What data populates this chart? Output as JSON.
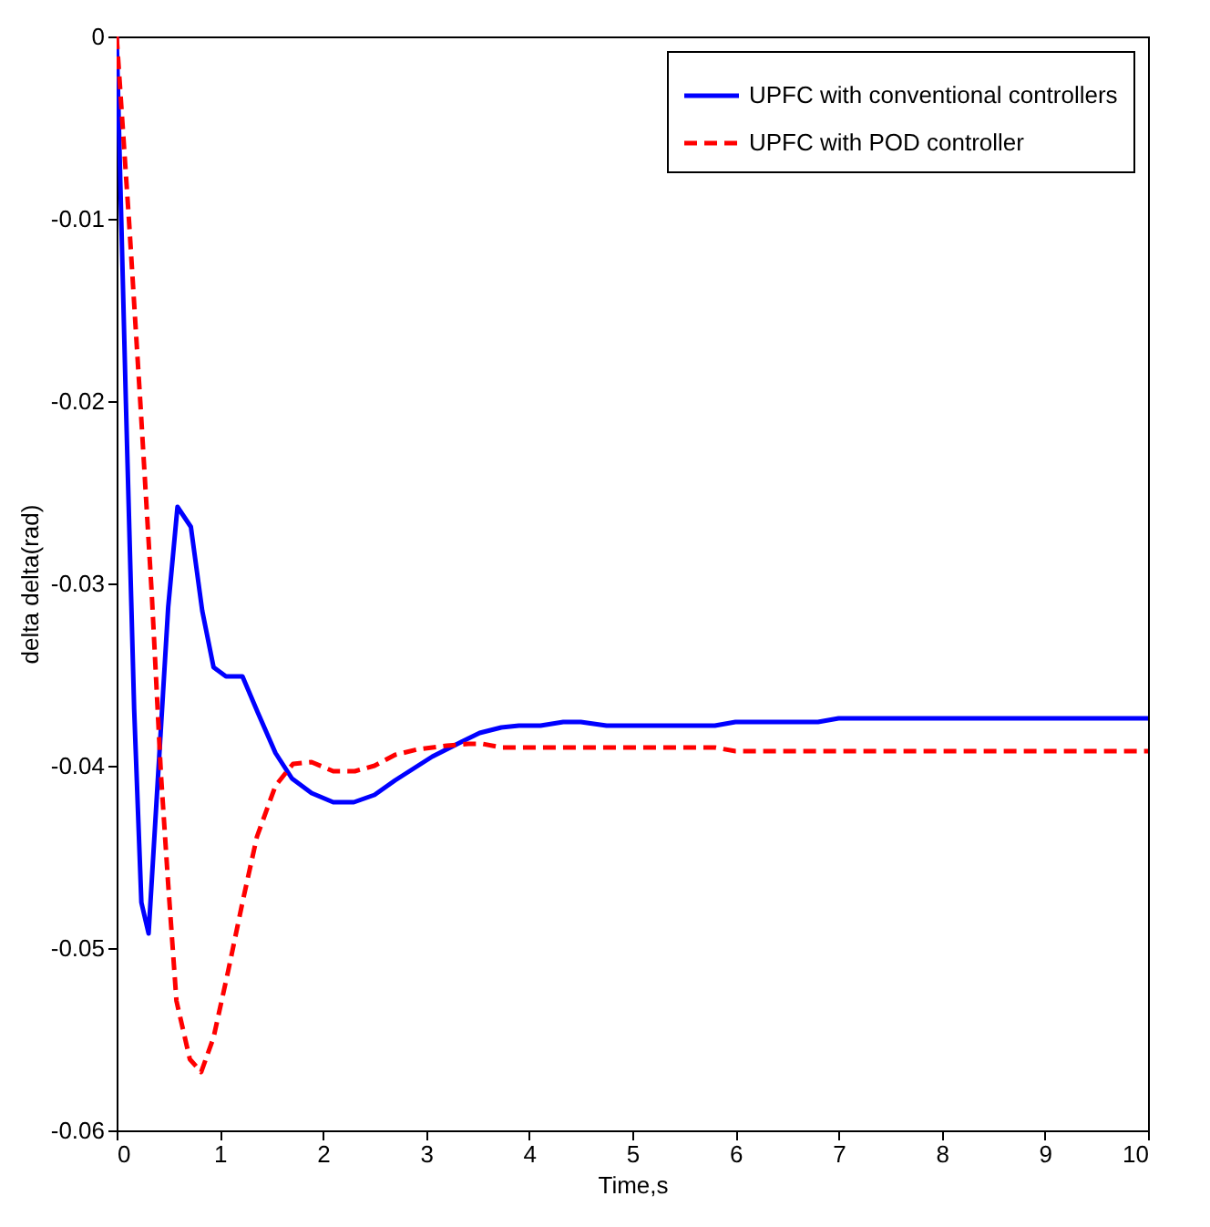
{
  "chart_data": {
    "type": "line",
    "xlabel": "Time,s",
    "ylabel": "delta delta(rad)",
    "xlim": [
      0,
      10
    ],
    "ylim": [
      -0.06,
      0
    ],
    "xticks": [
      0,
      1,
      2,
      3,
      4,
      5,
      6,
      7,
      8,
      9,
      10
    ],
    "yticks": [
      -0.06,
      -0.05,
      -0.04,
      -0.03,
      -0.02,
      -0.01,
      0
    ],
    "grid": false,
    "legend": "top right",
    "marker": "none",
    "series": [
      {
        "name": "UPFC with conventional controllers",
        "color": "#0000ff",
        "line_style": "solid",
        "x": [
          0,
          0.09,
          0.17,
          0.24,
          0.31,
          0.5,
          0.59,
          0.72,
          0.83,
          0.94,
          1.06,
          1.22,
          1.37,
          1.54,
          1.7,
          1.89,
          2.1,
          2.3,
          2.5,
          2.7,
          3.06,
          3.34,
          3.52,
          3.73,
          3.9,
          4.11,
          4.33,
          4.5,
          4.75,
          5.8,
          6.0,
          6.8,
          7.0,
          10
        ],
        "values": [
          0,
          -0.0201,
          -0.0369,
          -0.0475,
          -0.0492,
          -0.0313,
          -0.0258,
          -0.0269,
          -0.0315,
          -0.0346,
          -0.0351,
          -0.0351,
          -0.0371,
          -0.0393,
          -0.0407,
          -0.0415,
          -0.042,
          -0.042,
          -0.0416,
          -0.0408,
          -0.0395,
          -0.0387,
          -0.0382,
          -0.0379,
          -0.0378,
          -0.0378,
          -0.0376,
          -0.0376,
          -0.0378,
          -0.0378,
          -0.0376,
          -0.0376,
          -0.0374,
          -0.0374
        ]
      },
      {
        "name": "UPFC with POD controller",
        "color": "#ff0000",
        "line_style": "dashed",
        "x": [
          0,
          0.12,
          0.23,
          0.34,
          0.43,
          0.5,
          0.58,
          0.71,
          0.82,
          0.94,
          1.08,
          1.22,
          1.36,
          1.54,
          1.71,
          1.89,
          2.1,
          2.31,
          2.5,
          2.7,
          2.92,
          3.2,
          3.41,
          3.55,
          3.73,
          5.8,
          6.0,
          10
        ],
        "values": [
          0,
          -0.0101,
          -0.0201,
          -0.0305,
          -0.0405,
          -0.0465,
          -0.0529,
          -0.0561,
          -0.0568,
          -0.0549,
          -0.0513,
          -0.0475,
          -0.0439,
          -0.0411,
          -0.0399,
          -0.0398,
          -0.0403,
          -0.0403,
          -0.04,
          -0.0394,
          -0.0391,
          -0.0389,
          -0.0388,
          -0.0388,
          -0.039,
          -0.039,
          -0.0392,
          -0.0392
        ]
      }
    ]
  }
}
